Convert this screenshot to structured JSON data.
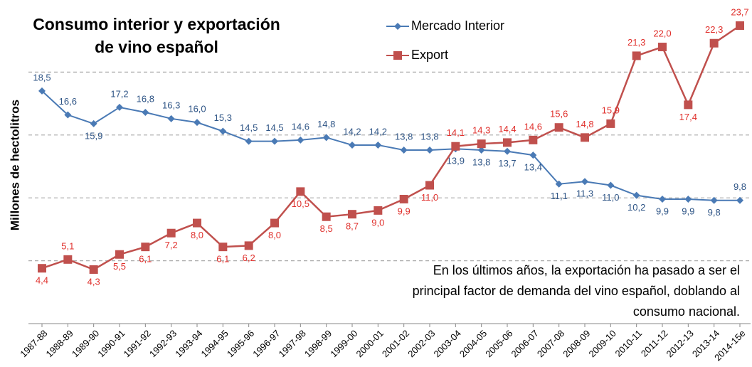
{
  "chart_data": {
    "type": "line",
    "title": [
      "Consumo interior y exportación",
      "de vino español"
    ],
    "y_label": "Millones de hectolitros",
    "annotation": [
      "En los últimos años, la exportación ha pasado a ser el",
      "principal factor de demanda del vino español, doblando al",
      "consumo nacional."
    ],
    "categories": [
      "1987-88",
      "1988-89",
      "1989-90",
      "1990-91",
      "1991-92",
      "1992-93",
      "1993-94",
      "1994-95",
      "1995-96",
      "1996-97",
      "1997-98",
      "1998-99",
      "1999-00",
      "2000-01",
      "2001-02",
      "2002-03",
      "2003-04",
      "2004-05",
      "2005-06",
      "2006-07",
      "2007-08",
      "2008-09",
      "2009-10",
      "2010-11",
      "2011-12",
      "2012-13",
      "2013-14",
      "2014-15e"
    ],
    "series": [
      {
        "name": "Mercado Interior",
        "color": "#4a7ab5",
        "marker": "diamond",
        "values": [
          18.5,
          16.6,
          15.9,
          17.2,
          16.8,
          16.3,
          16.0,
          15.3,
          14.5,
          14.5,
          14.6,
          14.8,
          14.2,
          14.2,
          13.8,
          13.8,
          13.9,
          13.8,
          13.7,
          13.4,
          11.1,
          11.3,
          11.0,
          10.2,
          9.9,
          9.9,
          9.8,
          9.8
        ],
        "value_labels": [
          "18,5",
          "16,6",
          "15,9",
          "17,2",
          "16,8",
          "16,3",
          "16,0",
          "15,3",
          "14,5",
          "14,5",
          "14,6",
          "14,8",
          "14,2",
          "14,2",
          "13,8",
          "13,8",
          "13,9",
          "13,8",
          "13,7",
          "13,4",
          "11,1",
          "11,3",
          "11,0",
          "10,2",
          "9,9",
          "9,9",
          "9,8",
          "9,8"
        ]
      },
      {
        "name": "Export",
        "color": "#c0504d",
        "marker": "square",
        "values": [
          4.4,
          5.1,
          4.3,
          5.5,
          6.1,
          7.2,
          8.0,
          6.1,
          6.2,
          8.0,
          10.5,
          8.5,
          8.7,
          9.0,
          9.9,
          11.0,
          14.1,
          14.3,
          14.4,
          14.6,
          15.6,
          14.8,
          15.9,
          21.3,
          22.0,
          17.4,
          22.3,
          23.7
        ],
        "value_labels": [
          "4,4",
          "5,1",
          "4,3",
          "5,5",
          "6,1",
          "7,2",
          "8,0",
          "6,1",
          "6,2",
          "8,0",
          "10,5",
          "8,5",
          "8,7",
          "9,0",
          "9,9",
          "11,0",
          "14,1",
          "14,3",
          "14,4",
          "14,6",
          "15,6",
          "14,8",
          "15,9",
          "21,3",
          "22,0",
          "17,4",
          "22,3",
          "23,7"
        ]
      }
    ],
    "ylim": [
      0,
      25
    ],
    "yticks": [
      5,
      10,
      15,
      20
    ],
    "grid": true
  }
}
